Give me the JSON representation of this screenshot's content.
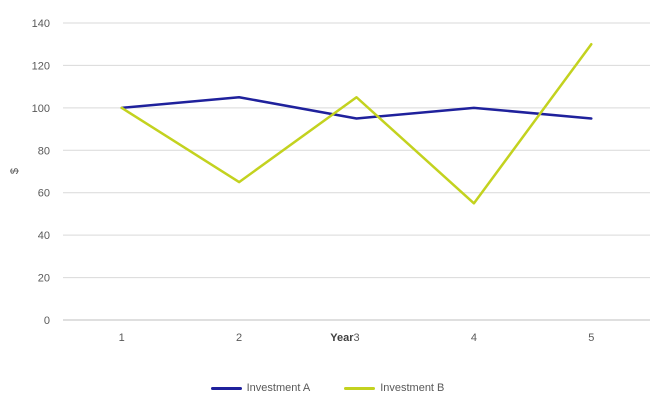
{
  "chart_data": {
    "type": "line",
    "title": "",
    "xlabel": "Year",
    "ylabel": "$",
    "categories": [
      "1",
      "2",
      "3",
      "4",
      "5"
    ],
    "series": [
      {
        "name": "Investment A",
        "color": "#1F219C",
        "values": [
          100,
          105,
          95,
          100,
          95
        ]
      },
      {
        "name": "Investment B",
        "color": "#C3D21F",
        "values": [
          100,
          65,
          105,
          55,
          130
        ]
      }
    ],
    "y_ticks": [
      0,
      20,
      40,
      60,
      80,
      100,
      120,
      140
    ],
    "ylim": [
      0,
      140
    ],
    "grid": true,
    "legend_position": "bottom",
    "colors": {
      "gridline": "#D9D9D9",
      "axis_line": "#BFBFBF",
      "tick_text": "#595959",
      "axis_title_text": "#404040",
      "background": "#FFFFFF"
    }
  }
}
